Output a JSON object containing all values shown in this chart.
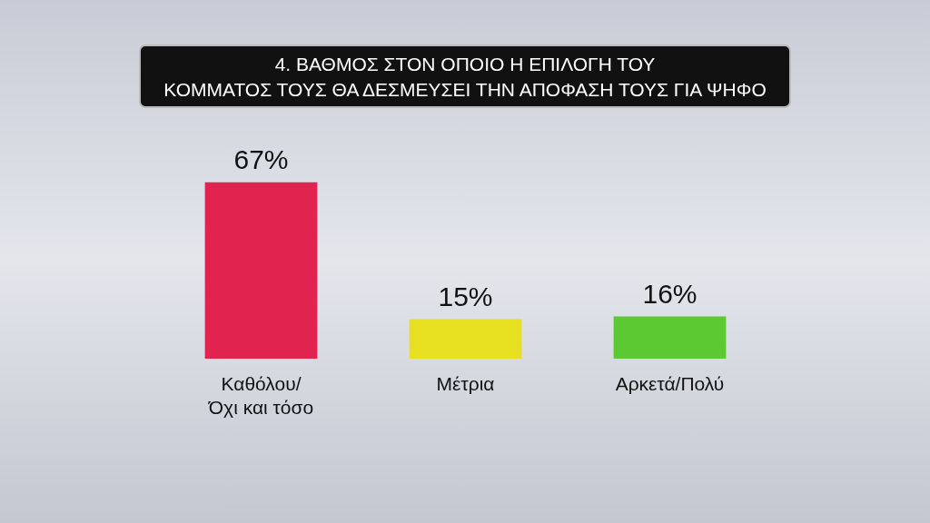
{
  "chart_data": {
    "type": "bar",
    "title": "4. ΒΑΘΜΟΣ ΣΤΟΝ ΟΠΟΙΟ Η ΕΠΙΛΟΓΗ ΤΟΥ\nΚΟΜΜΑΤΟΣ ΤΟΥΣ ΘΑ ΔΕΣΜΕΥΣΕΙ ΤΗΝ ΑΠΟΦΑΣΗ ΤΟΥΣ ΓΙΑ ΨΗΦΟ",
    "categories": [
      "Καθόλου/\nΌχι και τόσο",
      "Μέτρια",
      "Αρκετά/Πολύ"
    ],
    "values": [
      67,
      15,
      16
    ],
    "colors": [
      "#e0244f",
      "#e6e020",
      "#5cc832"
    ],
    "value_labels": [
      "67%",
      "15%",
      "16%"
    ]
  }
}
